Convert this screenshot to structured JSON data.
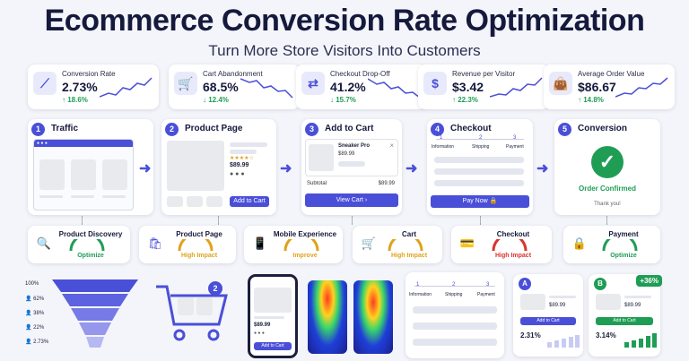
{
  "header": {
    "title": "Ecommerce Conversion Rate Optimization",
    "subtitle": "Turn More Store Visitors Into Customers"
  },
  "kpis": [
    {
      "label": "Conversion Rate",
      "value": "2.73%",
      "change": "18.6%",
      "icon": "chart-icon",
      "trend": "up"
    },
    {
      "label": "Cart Abandonment",
      "value": "68.5%",
      "change": "12.4%",
      "icon": "cart-icon",
      "trend": "down"
    },
    {
      "label": "Checkout Drop-Off",
      "value": "41.2%",
      "change": "15.7%",
      "icon": "flow-icon",
      "trend": "down"
    },
    {
      "label": "Revenue per Visitor",
      "value": "$3.42",
      "change": "22.3%",
      "icon": "dollar-icon",
      "trend": "up"
    },
    {
      "label": "Average Order Value",
      "value": "$86.67",
      "change": "14.8%",
      "icon": "bag-icon",
      "trend": "up"
    }
  ],
  "steps": [
    {
      "num": "1",
      "label": "Traffic"
    },
    {
      "num": "2",
      "label": "Product Page"
    },
    {
      "num": "3",
      "label": "Add to Cart"
    },
    {
      "num": "4",
      "label": "Checkout"
    },
    {
      "num": "5",
      "label": "Conversion"
    }
  ],
  "product": {
    "price": "$89.99",
    "add_to_cart": "Add to Cart",
    "stars": "★★★★☆"
  },
  "cart": {
    "item_name": "Sneaker Pro",
    "item_price": "$89.99",
    "subtotal_label": "Subtotal",
    "subtotal_value": "$89.99",
    "view_cart": "View Cart",
    "close": "×"
  },
  "checkout": {
    "steps": [
      "Information",
      "Shipping",
      "Payment"
    ],
    "step_nums": [
      "1",
      "2",
      "3"
    ],
    "pay_now": "Pay Now"
  },
  "conversion": {
    "confirmed": "Order Confirmed",
    "thanks": "Thank you!"
  },
  "metrics": [
    {
      "label": "Product Discovery",
      "status": "Optimize",
      "color": "#1f9d55"
    },
    {
      "label": "Product Page",
      "status": "High Impact",
      "color": "#e0a21a"
    },
    {
      "label": "Mobile Experience",
      "status": "Improve",
      "color": "#e0a21a"
    },
    {
      "label": "Cart",
      "status": "High Impact",
      "color": "#e0a21a"
    },
    {
      "label": "Checkout",
      "status": "High Impact",
      "color": "#d9342b"
    },
    {
      "label": "Payment",
      "status": "Optimize",
      "color": "#1f9d55"
    }
  ],
  "funnel": {
    "labels": [
      "100%",
      "62%",
      "38%",
      "22%",
      "2.73%"
    ]
  },
  "cart_badge": "2",
  "mobile": {
    "price": "$89.99",
    "add_to_cart": "Add to Cart"
  },
  "abtest": {
    "a_label": "A",
    "b_label": "B",
    "a_price": "$89.99",
    "b_price": "$89.99",
    "a_button": "Add to Cart",
    "b_button": "Add to Cart",
    "a_rate": "2.31%",
    "b_rate": "3.14%",
    "lift": "+36%"
  },
  "colors": {
    "accent": "#4a4fd8",
    "success": "#1f9d55",
    "warning": "#e0a21a",
    "danger": "#d9342b"
  }
}
